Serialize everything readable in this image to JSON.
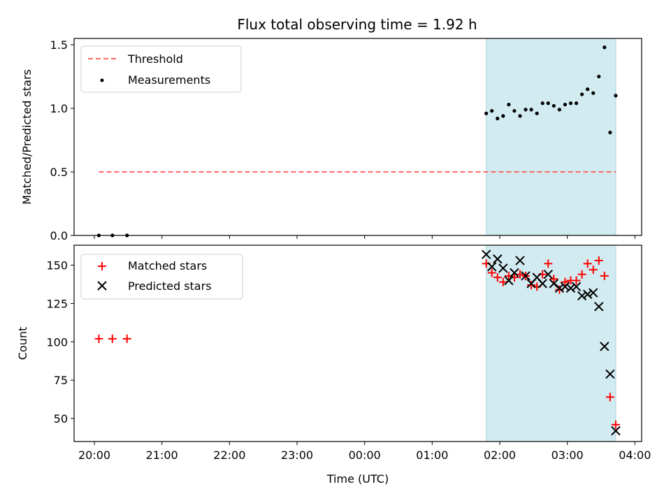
{
  "chart_data": [
    {
      "type": "scatter",
      "title": "Flux total observing time = 1.92 h",
      "xlabel": "",
      "ylabel": "Matched/Predicted stars",
      "xlim": [
        "19:42",
        "04:06"
      ],
      "ylim": [
        0,
        1.55
      ],
      "yticks": [
        0.0,
        0.5,
        1.0,
        1.5
      ],
      "ytick_labels": [
        "0.0",
        "0.5",
        "1.0",
        "1.5"
      ],
      "legend_position": "upper-left",
      "shaded_region": {
        "from": "01:48",
        "to": "03:43",
        "color": "#add8e6"
      },
      "colors": {
        "threshold": "#ff6666",
        "measurements": "#000000",
        "shade": "#d0e9f0"
      },
      "series": [
        {
          "name": "Threshold",
          "style": "dashed-line",
          "x": [
            "20:04",
            "03:43"
          ],
          "y": [
            0.5,
            0.5
          ]
        },
        {
          "name": "Measurements",
          "style": "dots",
          "x": [
            "20:04",
            "20:16",
            "20:29",
            "01:48",
            "01:53",
            "01:58",
            "02:03",
            "02:08",
            "02:13",
            "02:18",
            "02:23",
            "02:28",
            "02:33",
            "02:38",
            "02:43",
            "02:48",
            "02:53",
            "02:58",
            "03:03",
            "03:08",
            "03:13",
            "03:18",
            "03:23",
            "03:28",
            "03:33",
            "03:38",
            "03:43"
          ],
          "y": [
            0.0,
            0.0,
            0.0,
            0.96,
            0.98,
            0.92,
            0.94,
            1.03,
            0.98,
            0.94,
            0.99,
            0.99,
            0.96,
            1.04,
            1.04,
            1.02,
            0.99,
            1.03,
            1.04,
            1.04,
            1.11,
            1.15,
            1.12,
            1.25,
            1.48,
            0.81,
            1.1
          ]
        }
      ]
    },
    {
      "type": "scatter",
      "title": "",
      "xlabel": "Time (UTC)",
      "ylabel": "Count",
      "xlim": [
        "19:42",
        "04:06"
      ],
      "ylim": [
        35,
        163
      ],
      "yticks": [
        50,
        75,
        100,
        125,
        150
      ],
      "ytick_labels": [
        "50",
        "75",
        "100",
        "125",
        "150"
      ],
      "xticks": [
        "20:00",
        "21:00",
        "22:00",
        "23:00",
        "00:00",
        "01:00",
        "02:00",
        "03:00",
        "04:00"
      ],
      "legend_position": "upper-left",
      "shaded_region": {
        "from": "01:48",
        "to": "03:43",
        "color": "#add8e6"
      },
      "colors": {
        "matched": "#ff0000",
        "predicted": "#000000"
      },
      "series": [
        {
          "name": "Matched stars",
          "marker": "plus",
          "x": [
            "20:04",
            "20:16",
            "20:29",
            "01:48",
            "01:53",
            "01:58",
            "02:03",
            "02:08",
            "02:13",
            "02:18",
            "02:23",
            "02:28",
            "02:33",
            "02:38",
            "02:43",
            "02:48",
            "02:53",
            "02:58",
            "03:03",
            "03:08",
            "03:13",
            "03:18",
            "03:23",
            "03:28",
            "03:33",
            "03:38",
            "03:43"
          ],
          "y": [
            102,
            102,
            102,
            151,
            145,
            142,
            139,
            143,
            142,
            144,
            143,
            137,
            136,
            144,
            151,
            141,
            134,
            139,
            140,
            140,
            144,
            151,
            147,
            153,
            143,
            64,
            46
          ]
        },
        {
          "name": "Predicted stars",
          "marker": "x",
          "x": [
            "01:48",
            "01:53",
            "01:58",
            "02:03",
            "02:08",
            "02:13",
            "02:18",
            "02:23",
            "02:28",
            "02:33",
            "02:38",
            "02:43",
            "02:48",
            "02:53",
            "02:58",
            "03:03",
            "03:08",
            "03:13",
            "03:18",
            "03:23",
            "03:28",
            "03:33",
            "03:38",
            "03:43"
          ],
          "y": [
            157,
            149,
            154,
            148,
            140,
            145,
            153,
            143,
            138,
            142,
            138,
            144,
            138,
            135,
            136,
            135,
            136,
            130,
            131,
            132,
            123,
            97,
            79,
            42
          ]
        }
      ]
    }
  ]
}
